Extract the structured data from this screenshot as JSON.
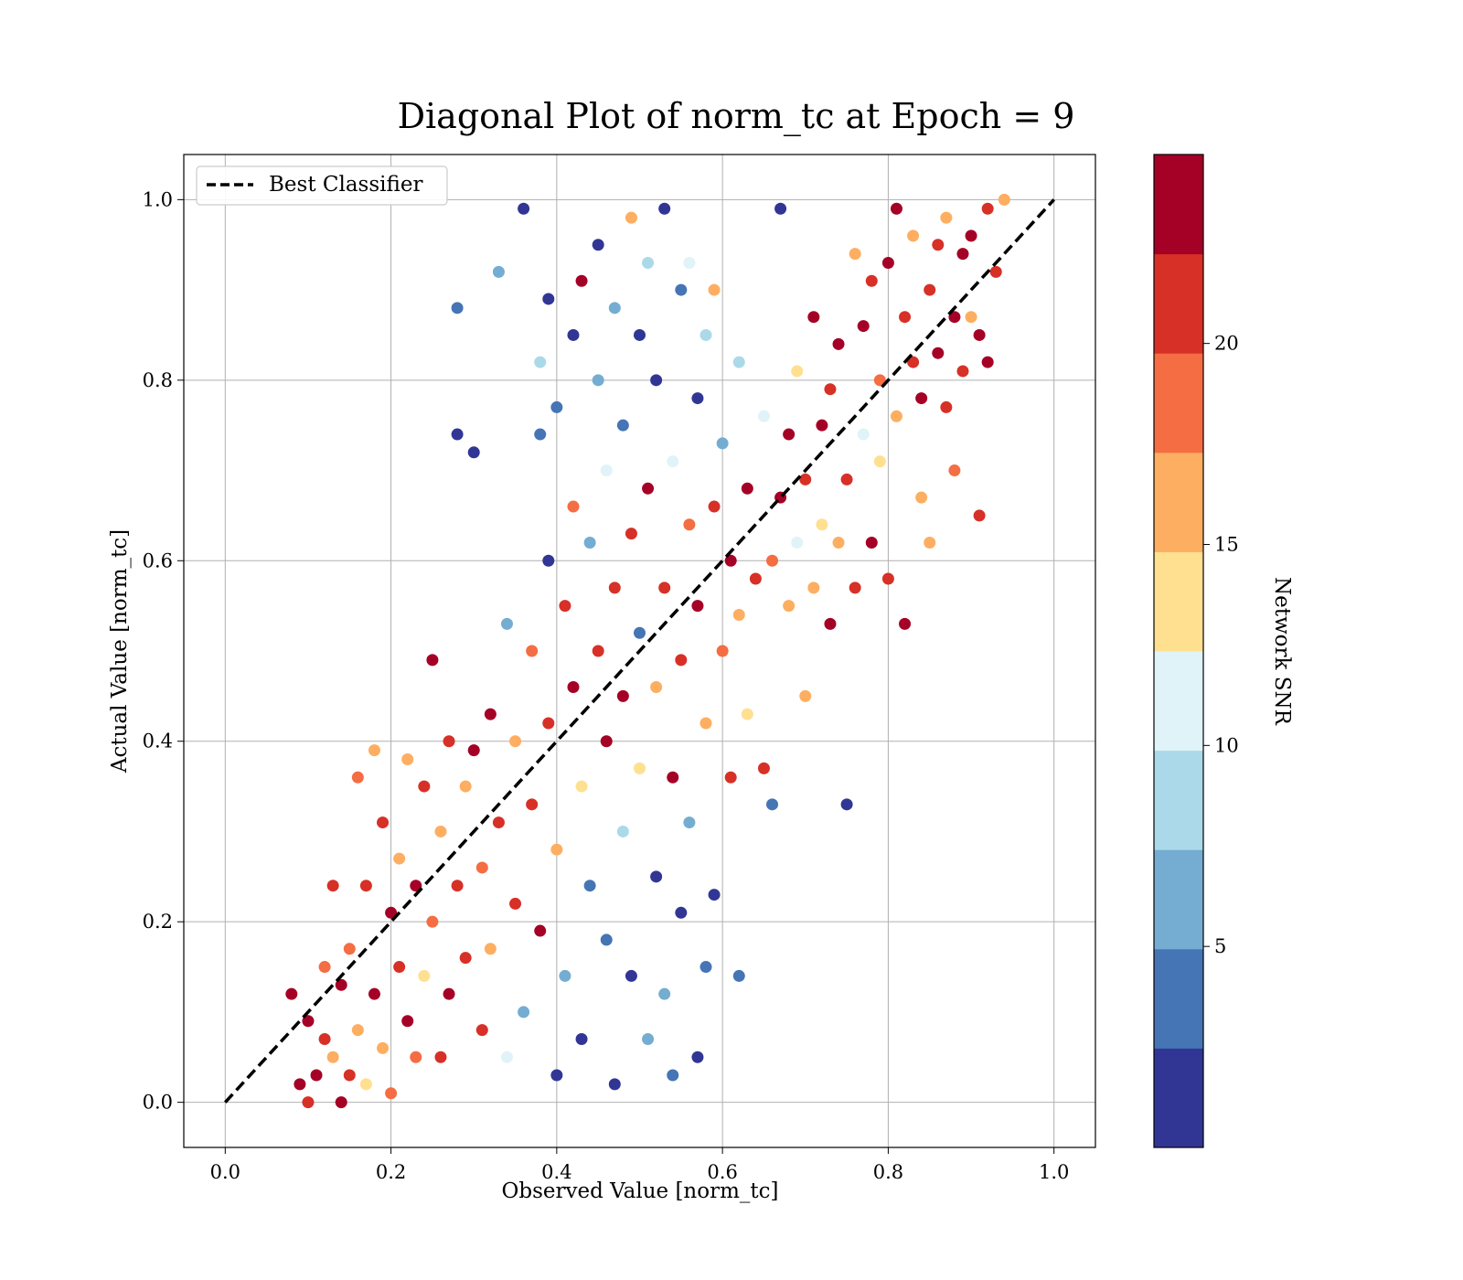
{
  "chart_data": {
    "type": "scatter",
    "title": "Diagonal Plot of norm_tc at Epoch = 9",
    "xlabel": "Observed Value [norm_tc]",
    "ylabel": "Actual Value [norm_tc]",
    "xlim": [
      -0.05,
      1.05
    ],
    "ylim": [
      -0.05,
      1.05
    ],
    "x_ticks": [
      "0.0",
      "0.2",
      "0.4",
      "0.6",
      "0.8",
      "1.0"
    ],
    "y_ticks": [
      "0.0",
      "0.2",
      "0.4",
      "0.6",
      "0.8",
      "1.0"
    ],
    "grid": true,
    "legend": {
      "position": "top-left",
      "entries": [
        "Best Classifier"
      ]
    },
    "reference_line": {
      "name": "Best Classifier",
      "style": "dashed",
      "color": "#000000",
      "x": [
        0,
        1
      ],
      "y": [
        0,
        1
      ]
    },
    "colorbar": {
      "label": "Network SNR",
      "range": [
        0,
        24.7
      ],
      "ticks": [
        "5",
        "10",
        "15",
        "20"
      ],
      "tick_values": [
        5,
        10,
        15,
        20
      ],
      "boundaries": [
        0,
        2.47,
        4.94,
        7.41,
        9.88,
        12.35,
        14.82,
        17.29,
        19.76,
        22.23,
        24.7
      ],
      "colors": [
        "#313695",
        "#4575b4",
        "#74add1",
        "#abd9e9",
        "#e0f3f8",
        "#fee090",
        "#fdae61",
        "#f46d43",
        "#d73027",
        "#a50026"
      ]
    },
    "series": [
      {
        "note_points": "approximate sample of the dense scatter",
        "points": [
          [
            0.08,
            0.12,
            24
          ],
          [
            0.09,
            0.02,
            23
          ],
          [
            0.1,
            0.0,
            21
          ],
          [
            0.1,
            0.09,
            24
          ],
          [
            0.11,
            0.03,
            23
          ],
          [
            0.12,
            0.07,
            22
          ],
          [
            0.12,
            0.15,
            19
          ],
          [
            0.13,
            0.24,
            21
          ],
          [
            0.13,
            0.05,
            16
          ],
          [
            0.14,
            0.0,
            23
          ],
          [
            0.14,
            0.13,
            24
          ],
          [
            0.15,
            0.03,
            21
          ],
          [
            0.15,
            0.17,
            18
          ],
          [
            0.16,
            0.08,
            16
          ],
          [
            0.16,
            0.36,
            19
          ],
          [
            0.17,
            0.24,
            21
          ],
          [
            0.17,
            0.02,
            14
          ],
          [
            0.18,
            0.39,
            16
          ],
          [
            0.18,
            0.12,
            23
          ],
          [
            0.19,
            0.06,
            15
          ],
          [
            0.19,
            0.31,
            22
          ],
          [
            0.2,
            0.21,
            24
          ],
          [
            0.2,
            0.01,
            19
          ],
          [
            0.21,
            0.15,
            21
          ],
          [
            0.21,
            0.27,
            16
          ],
          [
            0.22,
            0.09,
            23
          ],
          [
            0.22,
            0.38,
            15
          ],
          [
            0.23,
            0.24,
            24
          ],
          [
            0.23,
            0.05,
            19
          ],
          [
            0.24,
            0.35,
            21
          ],
          [
            0.24,
            0.14,
            14
          ],
          [
            0.25,
            0.49,
            23
          ],
          [
            0.25,
            0.2,
            18
          ],
          [
            0.26,
            0.05,
            22
          ],
          [
            0.26,
            0.3,
            16
          ],
          [
            0.27,
            0.4,
            21
          ],
          [
            0.27,
            0.12,
            24
          ],
          [
            0.28,
            0.74,
            1
          ],
          [
            0.28,
            0.88,
            4
          ],
          [
            0.28,
            0.24,
            21
          ],
          [
            0.29,
            0.35,
            15
          ],
          [
            0.29,
            0.16,
            22
          ],
          [
            0.3,
            0.72,
            1
          ],
          [
            0.3,
            0.39,
            24
          ],
          [
            0.31,
            0.26,
            18
          ],
          [
            0.31,
            0.08,
            21
          ],
          [
            0.32,
            0.43,
            23
          ],
          [
            0.32,
            0.17,
            16
          ],
          [
            0.33,
            0.92,
            6
          ],
          [
            0.33,
            0.31,
            22
          ],
          [
            0.34,
            0.05,
            12
          ],
          [
            0.34,
            0.53,
            6
          ],
          [
            0.35,
            0.22,
            21
          ],
          [
            0.35,
            0.4,
            16
          ],
          [
            0.36,
            0.99,
            1
          ],
          [
            0.36,
            0.1,
            5
          ],
          [
            0.37,
            0.33,
            22
          ],
          [
            0.37,
            0.5,
            19
          ],
          [
            0.38,
            0.74,
            4
          ],
          [
            0.38,
            0.19,
            24
          ],
          [
            0.38,
            0.82,
            9
          ],
          [
            0.39,
            0.6,
            1
          ],
          [
            0.39,
            0.42,
            21
          ],
          [
            0.39,
            0.89,
            2
          ],
          [
            0.4,
            0.77,
            3
          ],
          [
            0.4,
            0.28,
            15
          ],
          [
            0.4,
            0.03,
            1
          ],
          [
            0.41,
            0.55,
            21
          ],
          [
            0.41,
            0.14,
            6
          ],
          [
            0.42,
            0.85,
            1
          ],
          [
            0.42,
            0.46,
            23
          ],
          [
            0.42,
            0.66,
            18
          ],
          [
            0.43,
            0.35,
            14
          ],
          [
            0.43,
            0.07,
            1
          ],
          [
            0.43,
            0.91,
            24
          ],
          [
            0.44,
            0.62,
            5
          ],
          [
            0.44,
            0.24,
            3
          ],
          [
            0.45,
            0.95,
            2
          ],
          [
            0.45,
            0.5,
            21
          ],
          [
            0.45,
            0.8,
            6
          ],
          [
            0.46,
            0.4,
            23
          ],
          [
            0.46,
            0.18,
            4
          ],
          [
            0.46,
            0.7,
            11
          ],
          [
            0.47,
            0.88,
            5
          ],
          [
            0.47,
            0.57,
            20
          ],
          [
            0.47,
            0.02,
            1
          ],
          [
            0.48,
            0.3,
            9
          ],
          [
            0.48,
            0.75,
            3
          ],
          [
            0.48,
            0.45,
            24
          ],
          [
            0.49,
            0.98,
            15
          ],
          [
            0.49,
            0.14,
            2
          ],
          [
            0.49,
            0.63,
            21
          ],
          [
            0.5,
            0.85,
            1
          ],
          [
            0.5,
            0.37,
            13
          ],
          [
            0.5,
            0.52,
            4
          ],
          [
            0.51,
            0.07,
            6
          ],
          [
            0.51,
            0.93,
            9
          ],
          [
            0.51,
            0.68,
            24
          ],
          [
            0.52,
            0.25,
            1
          ],
          [
            0.52,
            0.46,
            17
          ],
          [
            0.52,
            0.8,
            2
          ],
          [
            0.53,
            0.57,
            22
          ],
          [
            0.53,
            0.12,
            5
          ],
          [
            0.53,
            0.99,
            1
          ],
          [
            0.54,
            0.36,
            24
          ],
          [
            0.54,
            0.71,
            12
          ],
          [
            0.54,
            0.03,
            3
          ],
          [
            0.55,
            0.9,
            4
          ],
          [
            0.55,
            0.49,
            21
          ],
          [
            0.55,
            0.21,
            1
          ],
          [
            0.56,
            0.64,
            19
          ],
          [
            0.56,
            0.93,
            10
          ],
          [
            0.56,
            0.31,
            6
          ],
          [
            0.57,
            0.78,
            1
          ],
          [
            0.57,
            0.55,
            23
          ],
          [
            0.57,
            0.05,
            2
          ],
          [
            0.58,
            0.42,
            17
          ],
          [
            0.58,
            0.85,
            9
          ],
          [
            0.58,
            0.15,
            4
          ],
          [
            0.59,
            0.66,
            22
          ],
          [
            0.59,
            0.9,
            15
          ],
          [
            0.59,
            0.23,
            1
          ],
          [
            0.6,
            0.5,
            19
          ],
          [
            0.6,
            0.73,
            6
          ],
          [
            0.61,
            0.36,
            21
          ],
          [
            0.61,
            0.6,
            24
          ],
          [
            0.62,
            0.14,
            3
          ],
          [
            0.62,
            0.82,
            8
          ],
          [
            0.62,
            0.54,
            16
          ],
          [
            0.63,
            0.68,
            24
          ],
          [
            0.63,
            0.43,
            14
          ],
          [
            0.64,
            0.58,
            21
          ],
          [
            0.65,
            0.37,
            22
          ],
          [
            0.65,
            0.76,
            12
          ],
          [
            0.66,
            0.6,
            19
          ],
          [
            0.66,
            0.33,
            3
          ],
          [
            0.67,
            0.67,
            24
          ],
          [
            0.67,
            0.99,
            2
          ],
          [
            0.68,
            0.55,
            15
          ],
          [
            0.68,
            0.74,
            23
          ],
          [
            0.69,
            0.62,
            11
          ],
          [
            0.69,
            0.81,
            14
          ],
          [
            0.7,
            0.45,
            16
          ],
          [
            0.7,
            0.69,
            21
          ],
          [
            0.71,
            0.57,
            15
          ],
          [
            0.71,
            0.87,
            24
          ],
          [
            0.72,
            0.75,
            23
          ],
          [
            0.72,
            0.64,
            13
          ],
          [
            0.73,
            0.53,
            24
          ],
          [
            0.73,
            0.79,
            21
          ],
          [
            0.74,
            0.62,
            17
          ],
          [
            0.74,
            0.84,
            24
          ],
          [
            0.75,
            0.69,
            22
          ],
          [
            0.75,
            0.33,
            2
          ],
          [
            0.76,
            0.94,
            16
          ],
          [
            0.76,
            0.57,
            20
          ],
          [
            0.77,
            0.86,
            23
          ],
          [
            0.77,
            0.74,
            12
          ],
          [
            0.78,
            0.91,
            22
          ],
          [
            0.78,
            0.62,
            24
          ],
          [
            0.79,
            0.8,
            18
          ],
          [
            0.79,
            0.71,
            14
          ],
          [
            0.8,
            0.93,
            24
          ],
          [
            0.8,
            0.58,
            21
          ],
          [
            0.81,
            0.99,
            23
          ],
          [
            0.81,
            0.76,
            16
          ],
          [
            0.82,
            0.53,
            24
          ],
          [
            0.82,
            0.87,
            22
          ],
          [
            0.83,
            0.82,
            21
          ],
          [
            0.83,
            0.96,
            15
          ],
          [
            0.84,
            0.67,
            17
          ],
          [
            0.84,
            0.78,
            24
          ],
          [
            0.85,
            0.9,
            20
          ],
          [
            0.85,
            0.62,
            16
          ],
          [
            0.86,
            0.83,
            24
          ],
          [
            0.86,
            0.95,
            22
          ],
          [
            0.87,
            0.77,
            21
          ],
          [
            0.87,
            0.98,
            15
          ],
          [
            0.88,
            0.87,
            24
          ],
          [
            0.88,
            0.7,
            19
          ],
          [
            0.89,
            0.94,
            23
          ],
          [
            0.89,
            0.81,
            21
          ],
          [
            0.9,
            0.96,
            24
          ],
          [
            0.9,
            0.87,
            17
          ],
          [
            0.91,
            0.85,
            24
          ],
          [
            0.91,
            0.65,
            21
          ],
          [
            0.92,
            0.99,
            22
          ],
          [
            0.92,
            0.82,
            24
          ],
          [
            0.93,
            0.92,
            21
          ],
          [
            0.94,
            1.0,
            16
          ]
        ]
      }
    ]
  }
}
